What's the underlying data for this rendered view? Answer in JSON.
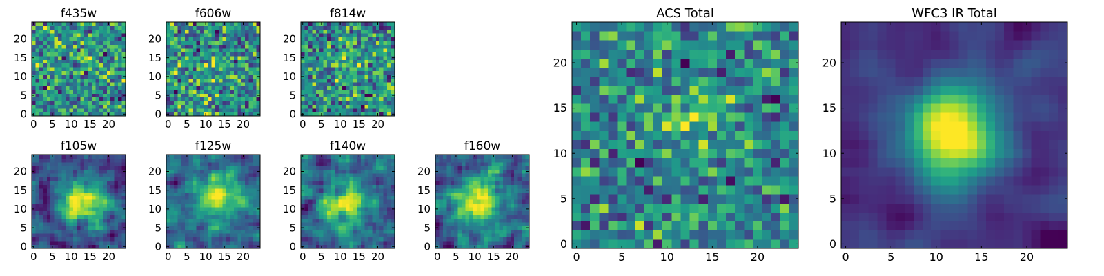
{
  "figure_title": "",
  "colors": {
    "viridis_low": "#440154",
    "viridis_mid": "#21918c",
    "viridis_high": "#fde725",
    "axis": "#000000",
    "background": "#ffffff"
  },
  "chart_data": [
    {
      "id": "f435w",
      "type": "heatmap",
      "title": "f435w",
      "grid_size": 25,
      "xticks": [
        0,
        5,
        10,
        15,
        20
      ],
      "yticks": [
        0,
        5,
        10,
        15,
        20
      ],
      "xlim": [
        0,
        24
      ],
      "ylim": [
        0,
        24
      ],
      "seed": 11,
      "colormap": "viridis",
      "noise": 1.0,
      "smooth": 0,
      "blob": {
        "x": 13,
        "y": 14,
        "sigma": 3,
        "amp": 0.2
      }
    },
    {
      "id": "f606w",
      "type": "heatmap",
      "title": "f606w",
      "grid_size": 25,
      "xticks": [
        0,
        5,
        10,
        15,
        20
      ],
      "yticks": [
        0,
        5,
        10,
        15,
        20
      ],
      "xlim": [
        0,
        24
      ],
      "ylim": [
        0,
        24
      ],
      "seed": 23,
      "colormap": "viridis",
      "noise": 1.0,
      "smooth": 0,
      "blob": {
        "x": 12,
        "y": 12,
        "sigma": 3,
        "amp": 0.15
      }
    },
    {
      "id": "f814w",
      "type": "heatmap",
      "title": "f814w",
      "grid_size": 25,
      "xticks": [
        0,
        5,
        10,
        15,
        20
      ],
      "yticks": [
        0,
        5,
        10,
        15,
        20
      ],
      "xlim": [
        0,
        24
      ],
      "ylim": [
        0,
        24
      ],
      "seed": 37,
      "colormap": "viridis",
      "noise": 1.0,
      "smooth": 0,
      "blob": {
        "x": 13,
        "y": 14,
        "sigma": 3,
        "amp": 0.45
      }
    },
    {
      "id": "f105w",
      "type": "heatmap",
      "title": "f105w",
      "grid_size": 25,
      "xticks": [
        0,
        5,
        10,
        15,
        20
      ],
      "yticks": [
        0,
        5,
        10,
        15,
        20
      ],
      "xlim": [
        0,
        24
      ],
      "ylim": [
        0,
        24
      ],
      "seed": 41,
      "colormap": "viridis",
      "noise": 1.0,
      "smooth": 1,
      "blob": {
        "x": 13,
        "y": 12,
        "sigma": 4,
        "amp": 1.1
      }
    },
    {
      "id": "f125w",
      "type": "heatmap",
      "title": "f125w",
      "grid_size": 25,
      "xticks": [
        0,
        5,
        10,
        15,
        20
      ],
      "yticks": [
        0,
        5,
        10,
        15,
        20
      ],
      "xlim": [
        0,
        24
      ],
      "ylim": [
        0,
        24
      ],
      "seed": 53,
      "colormap": "viridis",
      "noise": 1.0,
      "smooth": 1,
      "blob": {
        "x": 13,
        "y": 13,
        "sigma": 3.5,
        "amp": 0.9
      }
    },
    {
      "id": "f140w",
      "type": "heatmap",
      "title": "f140w",
      "grid_size": 25,
      "xticks": [
        0,
        5,
        10,
        15,
        20
      ],
      "yticks": [
        0,
        5,
        10,
        15,
        20
      ],
      "xlim": [
        0,
        24
      ],
      "ylim": [
        0,
        24
      ],
      "seed": 67,
      "colormap": "viridis",
      "noise": 1.0,
      "smooth": 1,
      "blob": {
        "x": 11,
        "y": 11,
        "sigma": 4,
        "amp": 0.8
      }
    },
    {
      "id": "f160w",
      "type": "heatmap",
      "title": "f160w",
      "grid_size": 25,
      "xticks": [
        0,
        5,
        10,
        15,
        20
      ],
      "yticks": [
        0,
        5,
        10,
        15,
        20
      ],
      "xlim": [
        0,
        24
      ],
      "ylim": [
        0,
        24
      ],
      "seed": 79,
      "colormap": "viridis",
      "noise": 1.0,
      "smooth": 1,
      "blob": {
        "x": 11,
        "y": 12,
        "sigma": 4,
        "amp": 0.9
      }
    },
    {
      "id": "acs-total",
      "type": "heatmap",
      "title": "ACS Total",
      "grid_size": 25,
      "xticks": [
        0,
        5,
        10,
        15,
        20
      ],
      "yticks": [
        0,
        5,
        10,
        15,
        20
      ],
      "xlim": [
        0,
        24
      ],
      "ylim": [
        0,
        24
      ],
      "seed": 97,
      "colormap": "viridis",
      "noise": 1.0,
      "smooth": 0,
      "blob": {
        "x": 13,
        "y": 14,
        "sigma": 3,
        "amp": 0.6
      }
    },
    {
      "id": "wfc3-ir-total",
      "type": "heatmap",
      "title": "WFC3 IR Total",
      "grid_size": 25,
      "xticks": [
        0,
        5,
        10,
        15,
        20
      ],
      "yticks": [
        0,
        5,
        10,
        15,
        20
      ],
      "xlim": [
        0,
        24
      ],
      "ylim": [
        0,
        24
      ],
      "seed": 113,
      "colormap": "viridis",
      "noise": 1.0,
      "smooth": 2,
      "blob": {
        "x": 12,
        "y": 12,
        "sigma": 3.5,
        "amp": 2.2
      }
    }
  ]
}
